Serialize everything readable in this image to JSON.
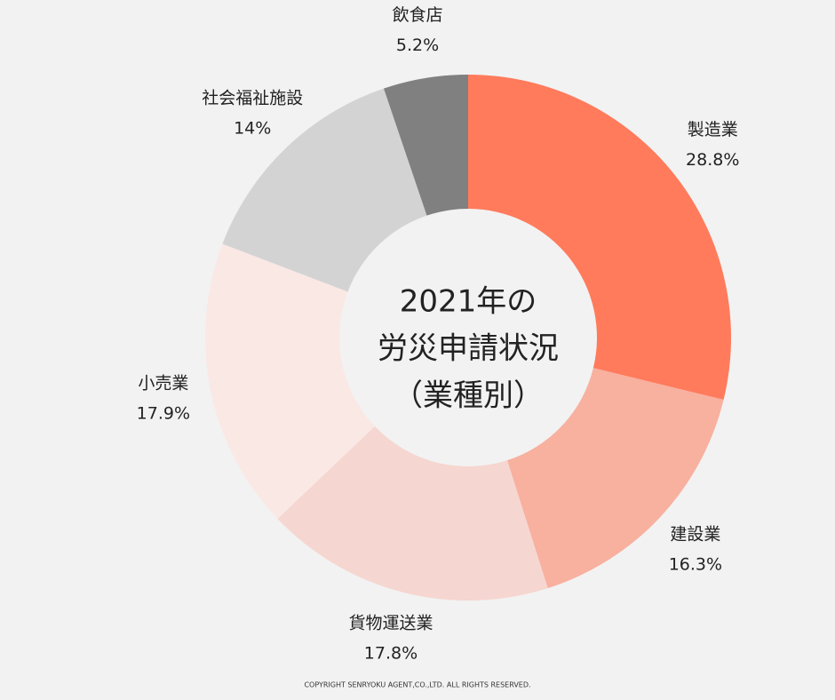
{
  "chart_data": {
    "type": "donut",
    "title": [
      "2021年の",
      "労災申請状況",
      "（業種別）"
    ],
    "categories": [
      "製造業",
      "建設業",
      "貨物運送業",
      "小売業",
      "社会福祉施設",
      "飲食店"
    ],
    "values": [
      28.8,
      16.3,
      17.8,
      17.9,
      14,
      5.2
    ],
    "value_labels": [
      "28.8%",
      "16.3%",
      "17.8%",
      "17.9%",
      "14%",
      "5.2%"
    ],
    "colors": [
      "#ff7b5c",
      "#f8b09f",
      "#f6d6d0",
      "#fae8e4",
      "#d3d3d4",
      "#808080"
    ],
    "footer": "COPYRIGHT SENRYOKU AGENT,CO.,LTD. ALL RIGHTS RESERVED."
  }
}
